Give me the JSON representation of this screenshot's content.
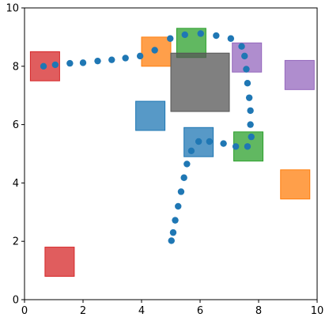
{
  "chart_data": {
    "type": "scatter",
    "title": "",
    "xlabel": "",
    "ylabel": "",
    "xlim": [
      0,
      10
    ],
    "ylim": [
      0,
      10
    ],
    "xticks": [
      0,
      2,
      4,
      6,
      8,
      10
    ],
    "yticks": [
      0,
      2,
      4,
      6,
      8,
      10
    ],
    "xtick_labels": [
      "0",
      "2",
      "4",
      "6",
      "8",
      "10"
    ],
    "ytick_labels": [
      "0",
      "2",
      "4",
      "6",
      "8",
      "10"
    ],
    "grid": false,
    "legend": "none",
    "point_color": "#1f77b4",
    "rectangles": [
      {
        "name": "red-square-top-left",
        "x0": 0.2,
        "y0": 7.5,
        "x1": 1.2,
        "y1": 8.5,
        "color": "#d62728",
        "alpha": 0.75
      },
      {
        "name": "red-square-bottom-left",
        "x0": 0.7,
        "y0": 0.8,
        "x1": 1.7,
        "y1": 1.8,
        "color": "#d62728",
        "alpha": 0.75
      },
      {
        "name": "orange-square-top",
        "x0": 4.0,
        "y0": 8.0,
        "x1": 5.0,
        "y1": 9.0,
        "color": "#ff7f0e",
        "alpha": 0.75
      },
      {
        "name": "green-square-top",
        "x0": 5.2,
        "y0": 8.3,
        "x1": 6.2,
        "y1": 9.3,
        "color": "#2ca02c",
        "alpha": 0.75
      },
      {
        "name": "gray-rectangle-center",
        "x0": 5.0,
        "y0": 6.45,
        "x1": 7.0,
        "y1": 8.45,
        "color": "#555555",
        "alpha": 0.75
      },
      {
        "name": "purple-square-top-right-inner",
        "x0": 7.1,
        "y0": 7.8,
        "x1": 8.1,
        "y1": 8.8,
        "color": "#9467bd",
        "alpha": 0.75
      },
      {
        "name": "purple-square-far-right",
        "x0": 8.9,
        "y0": 7.2,
        "x1": 9.9,
        "y1": 8.2,
        "color": "#9467bd",
        "alpha": 0.75
      },
      {
        "name": "blue-square-left",
        "x0": 3.8,
        "y0": 5.8,
        "x1": 4.8,
        "y1": 6.8,
        "color": "#1f77b4",
        "alpha": 0.75
      },
      {
        "name": "blue-square-center",
        "x0": 5.45,
        "y0": 4.9,
        "x1": 6.45,
        "y1": 5.9,
        "color": "#1f77b4",
        "alpha": 0.75
      },
      {
        "name": "green-square-right",
        "x0": 7.15,
        "y0": 4.75,
        "x1": 8.15,
        "y1": 5.75,
        "color": "#2ca02c",
        "alpha": 0.75
      },
      {
        "name": "orange-square-right",
        "x0": 8.75,
        "y0": 3.45,
        "x1": 9.75,
        "y1": 4.45,
        "color": "#ff7f0e",
        "alpha": 0.75
      }
    ],
    "points": [
      {
        "x": 0.65,
        "y": 8.0
      },
      {
        "x": 1.05,
        "y": 8.05
      },
      {
        "x": 1.55,
        "y": 8.1
      },
      {
        "x": 2.0,
        "y": 8.12
      },
      {
        "x": 2.5,
        "y": 8.18
      },
      {
        "x": 2.98,
        "y": 8.22
      },
      {
        "x": 3.45,
        "y": 8.28
      },
      {
        "x": 3.95,
        "y": 8.35
      },
      {
        "x": 4.45,
        "y": 8.55
      },
      {
        "x": 4.98,
        "y": 8.95
      },
      {
        "x": 5.48,
        "y": 9.08
      },
      {
        "x": 6.02,
        "y": 9.12
      },
      {
        "x": 6.55,
        "y": 9.05
      },
      {
        "x": 7.05,
        "y": 8.95
      },
      {
        "x": 7.42,
        "y": 8.68
      },
      {
        "x": 7.52,
        "y": 8.35
      },
      {
        "x": 7.58,
        "y": 7.9
      },
      {
        "x": 7.62,
        "y": 7.42
      },
      {
        "x": 7.68,
        "y": 6.92
      },
      {
        "x": 7.72,
        "y": 6.48
      },
      {
        "x": 7.72,
        "y": 6.0
      },
      {
        "x": 7.75,
        "y": 5.58
      },
      {
        "x": 7.62,
        "y": 5.25
      },
      {
        "x": 7.22,
        "y": 5.25
      },
      {
        "x": 6.8,
        "y": 5.35
      },
      {
        "x": 6.32,
        "y": 5.42
      },
      {
        "x": 5.95,
        "y": 5.42
      },
      {
        "x": 5.7,
        "y": 5.1
      },
      {
        "x": 5.55,
        "y": 4.65
      },
      {
        "x": 5.45,
        "y": 4.18
      },
      {
        "x": 5.35,
        "y": 3.7
      },
      {
        "x": 5.25,
        "y": 3.2
      },
      {
        "x": 5.15,
        "y": 2.72
      },
      {
        "x": 5.08,
        "y": 2.3
      },
      {
        "x": 5.02,
        "y": 2.02
      }
    ]
  }
}
